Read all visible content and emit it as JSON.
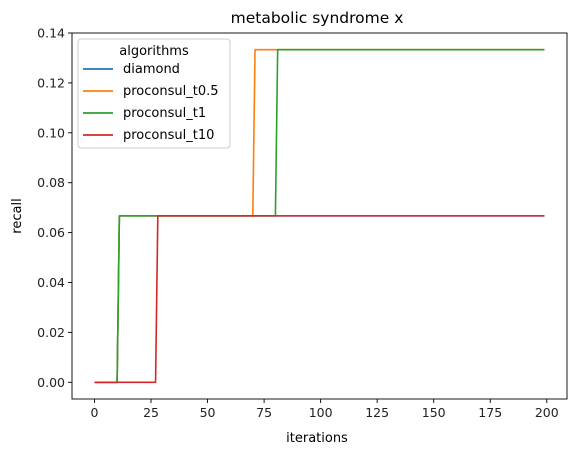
{
  "chart_data": {
    "type": "line",
    "title": "metabolic syndrome x",
    "xlabel": "iterations",
    "ylabel": "recall",
    "xlim": [
      -9.95,
      208.95
    ],
    "ylim": [
      -0.0067,
      0.14
    ],
    "xticks": [
      0,
      25,
      50,
      75,
      100,
      125,
      150,
      175,
      200
    ],
    "xtick_labels": [
      "0",
      "25",
      "50",
      "75",
      "100",
      "125",
      "150",
      "175",
      "200"
    ],
    "yticks": [
      0,
      0.02,
      0.04,
      0.06,
      0.08,
      0.1,
      0.12,
      0.14
    ],
    "ytick_labels": [
      "0.00",
      "0.02",
      "0.04",
      "0.06",
      "0.08",
      "0.10",
      "0.12",
      "0.14"
    ],
    "grid": false,
    "legend": {
      "title": "algorithms",
      "placement": "top-left"
    },
    "series": [
      {
        "name": "diamond",
        "color": "#1f77b4",
        "points": [
          [
            0,
            0.0
          ],
          [
            10,
            0.0
          ],
          [
            11,
            0.0667
          ],
          [
            199,
            0.0667
          ]
        ]
      },
      {
        "name": "proconsul_t0.5",
        "color": "#ff7f0e",
        "points": [
          [
            0,
            0.0
          ],
          [
            10,
            0.0
          ],
          [
            11,
            0.0667
          ],
          [
            70,
            0.0667
          ],
          [
            71,
            0.1333
          ],
          [
            199,
            0.1333
          ]
        ]
      },
      {
        "name": "proconsul_t1",
        "color": "#2ca02c",
        "points": [
          [
            0,
            0.0
          ],
          [
            10,
            0.0
          ],
          [
            11,
            0.0667
          ],
          [
            80,
            0.0667
          ],
          [
            81,
            0.1333
          ],
          [
            199,
            0.1333
          ]
        ]
      },
      {
        "name": "proconsul_t10",
        "color": "#d62728",
        "points": [
          [
            0,
            0.0
          ],
          [
            27,
            0.0
          ],
          [
            28,
            0.0667
          ],
          [
            199,
            0.0667
          ]
        ]
      }
    ]
  }
}
